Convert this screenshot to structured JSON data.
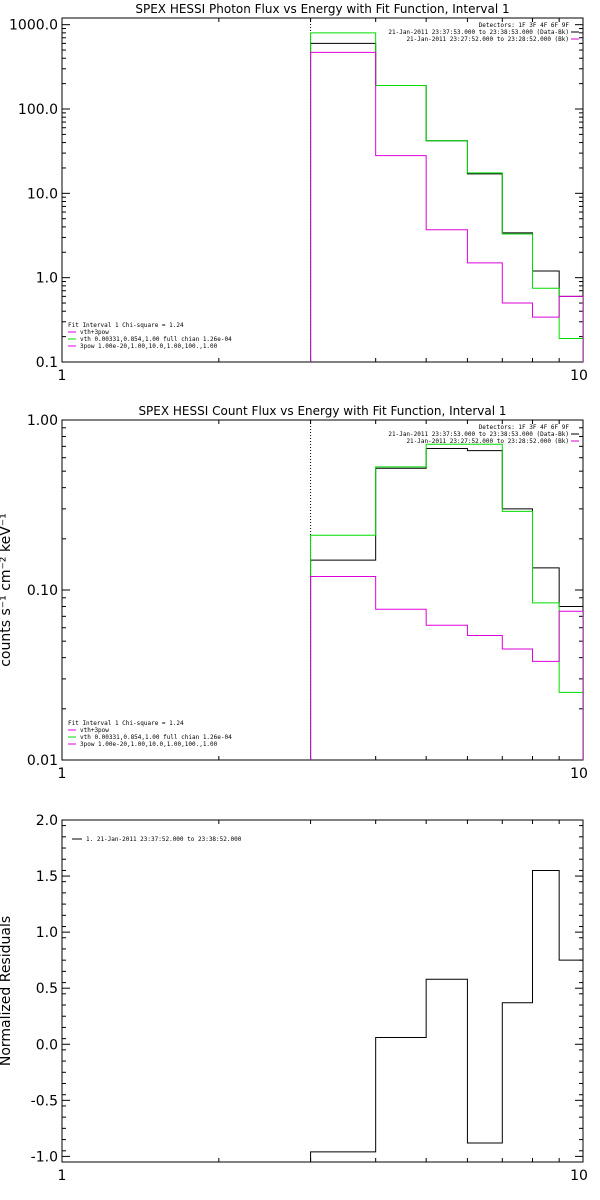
{
  "colors": {
    "black": "#000000",
    "green": "#00dd00",
    "magenta": "#dd00dd",
    "axis": "#000000"
  },
  "chart_data": [
    {
      "type": "line",
      "title": "SPEX HESSI Photon Flux vs Energy with Fit Function, Interval 1",
      "xlabel": "",
      "ylabel": "",
      "xscale": "log",
      "yscale": "log",
      "xlim": [
        1,
        10
      ],
      "ylim": [
        0.1,
        1200
      ],
      "x_ticks": [
        "1",
        "10"
      ],
      "y_ticks": [
        {
          "v": 0.1,
          "label": "0.1"
        },
        {
          "v": 1,
          "label": "1.0"
        },
        {
          "v": 10,
          "label": "10.0"
        },
        {
          "v": 100,
          "label": "100.0"
        },
        {
          "v": 1000,
          "label": "1000.0"
        }
      ],
      "edges": [
        3,
        4,
        5,
        6,
        7,
        8,
        9,
        10
      ],
      "series": [
        {
          "color": "black",
          "step_values": [
            600,
            190,
            42,
            17,
            3.4,
            1.2,
            0.6
          ]
        },
        {
          "color": "green",
          "step_values": [
            800,
            190,
            42,
            17.5,
            3.3,
            0.75,
            0.19
          ]
        },
        {
          "color": "magenta",
          "step_values": [
            470,
            28,
            3.7,
            1.5,
            0.5,
            0.34,
            0.6
          ]
        }
      ],
      "vline_x": 3,
      "legend_top": [
        "Detectors: 1F 3F 4F 6F 9F",
        "21-Jan-2011 23:37:53.000 to 23:38:53.000 (Data-Bk)",
        "21-Jan-2011 23:27:52.000 to 23:28:52.000 (Bk)"
      ],
      "legend_bottom_header": "Fit Interval  1    Chi-square = 1.24",
      "legend_bottom": [
        "vth+3pow",
        "vth 0.00331,0.854,1.00  full chian 1.26e-04",
        "3pow 1.00e-20,1.00,10.0,1.00,100.,1.00"
      ]
    },
    {
      "type": "line",
      "title": "SPEX HESSI Count Flux vs Energy with Fit Function, Interval 1",
      "xlabel": "",
      "ylabel": "counts s⁻¹ cm⁻² keV⁻¹",
      "xscale": "log",
      "yscale": "log",
      "xlim": [
        1,
        10
      ],
      "ylim": [
        0.01,
        1.0
      ],
      "x_ticks": [
        "1",
        "10"
      ],
      "y_ticks": [
        {
          "v": 0.01,
          "label": "0.01"
        },
        {
          "v": 0.1,
          "label": "0.10"
        },
        {
          "v": 1,
          "label": "1.00"
        }
      ],
      "edges": [
        3,
        4,
        5,
        6,
        7,
        8,
        9,
        10
      ],
      "series": [
        {
          "color": "black",
          "step_values": [
            0.15,
            0.52,
            0.68,
            0.66,
            0.3,
            0.135,
            0.08
          ]
        },
        {
          "color": "green",
          "step_values": [
            0.21,
            0.53,
            0.72,
            0.72,
            0.29,
            0.084,
            0.025
          ]
        },
        {
          "color": "magenta",
          "step_values": [
            0.12,
            0.077,
            0.062,
            0.054,
            0.045,
            0.038,
            0.075
          ]
        }
      ],
      "vline_x": 3,
      "legend_top": [
        "Detectors: 1F 3F 4F 6F 9F",
        "21-Jan-2011 23:37:53.000 to 23:38:53.000 (Data-Bk)",
        "21-Jan-2011 23:27:52.000 to 23:28:52.000 (Bk)"
      ],
      "legend_bottom_header": "Fit Interval  1    Chi-square = 1.24",
      "legend_bottom": [
        "vth+3pow",
        "vth 0.00331,0.854,1.00  full chian 1.26e-04",
        "3pow 1.00e-20,1.00,10.0,1.00,100.,1.00"
      ]
    },
    {
      "type": "line",
      "title": "",
      "xlabel": "",
      "ylabel": "Normalized Residuals",
      "xscale": "log",
      "yscale": "linear",
      "xlim": [
        1,
        10
      ],
      "ylim": [
        -1.05,
        2.0
      ],
      "x_ticks": [
        "1",
        "10"
      ],
      "y_ticks": [
        {
          "v": -1.0,
          "label": "-1.0"
        },
        {
          "v": -0.5,
          "label": "-0.5"
        },
        {
          "v": 0.0,
          "label": "0.0"
        },
        {
          "v": 0.5,
          "label": "0.5"
        },
        {
          "v": 1.0,
          "label": "1.0"
        },
        {
          "v": 1.5,
          "label": "1.5"
        },
        {
          "v": 2.0,
          "label": "2.0"
        }
      ],
      "edges": [
        3,
        4,
        5,
        6,
        7,
        8,
        9,
        10
      ],
      "series": [
        {
          "color": "black",
          "step_values": [
            -0.96,
            0.06,
            0.58,
            -0.88,
            0.37,
            1.55,
            0.75
          ]
        }
      ],
      "legend_top": [
        "1. 21-Jan-2011 23:37:52.000 to 23:38:52.000"
      ]
    }
  ]
}
